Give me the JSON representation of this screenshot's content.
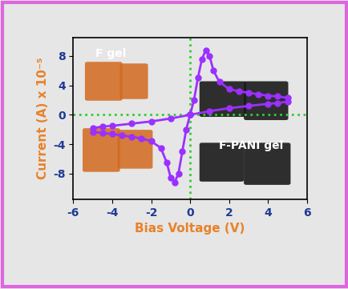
{
  "chart_data": {
    "type": "line",
    "x_label": "Bias Voltage (V)",
    "y_label": "Current (A) x 10⁻⁵",
    "annotations": [
      "F gel",
      "F-PANI gel"
    ],
    "x": [
      0,
      0.2,
      0.4,
      0.6,
      0.8,
      1.0,
      1.2,
      1.5,
      2.0,
      2.5,
      3.0,
      3.5,
      4.0,
      4.5,
      5.0,
      5.0,
      4.5,
      4.0,
      3.0,
      2.0,
      1.0,
      0,
      -0.2,
      -0.4,
      -0.6,
      -0.8,
      -1.0,
      -1.2,
      -1.5,
      -2.0,
      -2.5,
      -3.0,
      -3.5,
      -4.0,
      -4.5,
      -5.0,
      -5.0,
      -4.5,
      -4.0,
      -3.0,
      -2.0,
      -1.0,
      0
    ],
    "values": [
      0,
      2,
      5,
      7.5,
      8.8,
      8,
      6,
      4.5,
      3.5,
      3.2,
      3,
      2.8,
      2.6,
      2.5,
      2.3,
      1.8,
      1.6,
      1.5,
      1.2,
      0.9,
      0.5,
      0,
      -2,
      -5,
      -8,
      -9.2,
      -8.5,
      -6.5,
      -4.5,
      -3.6,
      -3.2,
      -3,
      -2.8,
      -2.6,
      -2.5,
      -2.3,
      -1.8,
      -1.6,
      -1.5,
      -1.2,
      -0.9,
      -0.5,
      0
    ],
    "color": "#9b30ff",
    "marker": "o",
    "line_style": "solid",
    "xlim": [
      -6,
      6
    ],
    "ylim": [
      -11.5,
      10.5
    ],
    "xticks": [
      -6,
      -4,
      -2,
      0,
      2,
      4,
      6
    ],
    "yticks": [
      -8,
      -4,
      0,
      4,
      8
    ]
  }
}
